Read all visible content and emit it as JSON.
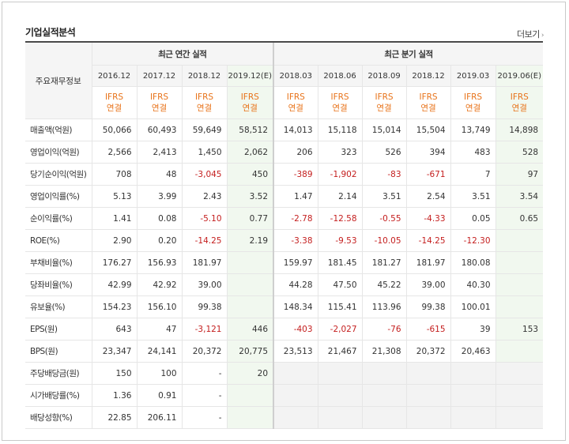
{
  "section_title": "기업실적분석",
  "more_link": "더보기",
  "header": {
    "row_header": "주요재무정보",
    "annual_group": "최근 연간 실적",
    "quarter_group": "최근 분기 실적",
    "annual_periods": [
      "2016.12",
      "2017.12",
      "2018.12",
      "2019.12(E)"
    ],
    "quarter_periods": [
      "2018.03",
      "2018.06",
      "2018.09",
      "2018.12",
      "2019.03",
      "2019.06(E)"
    ],
    "ifrs_line1": "IFRS",
    "ifrs_line2": "연결"
  },
  "rows": [
    {
      "label": "매출액(억원)",
      "values": [
        "50,066",
        "60,493",
        "59,649",
        "58,512",
        "14,013",
        "15,118",
        "15,014",
        "15,504",
        "13,749",
        "14,898"
      ]
    },
    {
      "label": "영업이익(억원)",
      "values": [
        "2,566",
        "2,413",
        "1,450",
        "2,062",
        "206",
        "323",
        "526",
        "394",
        "483",
        "528"
      ]
    },
    {
      "label": "당기순이익(억원)",
      "values": [
        "708",
        "48",
        "-3,045",
        "450",
        "-389",
        "-1,902",
        "-83",
        "-671",
        "7",
        "97"
      ]
    },
    {
      "label": "영업이익률(%)",
      "values": [
        "5.13",
        "3.99",
        "2.43",
        "3.52",
        "1.47",
        "2.14",
        "3.51",
        "2.54",
        "3.51",
        "3.54"
      ]
    },
    {
      "label": "순이익률(%)",
      "values": [
        "1.41",
        "0.08",
        "-5.10",
        "0.77",
        "-2.78",
        "-12.58",
        "-0.55",
        "-4.33",
        "0.05",
        "0.65"
      ]
    },
    {
      "label": "ROE(%)",
      "values": [
        "2.90",
        "0.20",
        "-14.25",
        "2.19",
        "-3.38",
        "-9.53",
        "-10.05",
        "-14.25",
        "-12.30",
        ""
      ]
    },
    {
      "label": "부채비율(%)",
      "values": [
        "176.27",
        "156.93",
        "181.97",
        "",
        "159.97",
        "181.45",
        "181.27",
        "181.97",
        "180.08",
        ""
      ]
    },
    {
      "label": "당좌비율(%)",
      "values": [
        "42.99",
        "42.92",
        "39.00",
        "",
        "44.28",
        "47.50",
        "45.22",
        "39.00",
        "40.30",
        ""
      ]
    },
    {
      "label": "유보율(%)",
      "values": [
        "154.23",
        "156.10",
        "99.38",
        "",
        "148.34",
        "115.41",
        "113.96",
        "99.38",
        "100.01",
        ""
      ]
    },
    {
      "label": "EPS(원)",
      "values": [
        "643",
        "47",
        "-3,121",
        "446",
        "-403",
        "-2,027",
        "-76",
        "-615",
        "39",
        "153"
      ]
    },
    {
      "label": "BPS(원)",
      "values": [
        "23,347",
        "24,141",
        "20,372",
        "20,775",
        "23,513",
        "21,467",
        "21,308",
        "20,372",
        "20,463",
        ""
      ]
    },
    {
      "label": "주당배당금(원)",
      "values": [
        "150",
        "100",
        "-",
        "20",
        "",
        "",
        "",
        "",
        "",
        ""
      ]
    },
    {
      "label": "시가배당률(%)",
      "values": [
        "1.36",
        "0.91",
        "-",
        "",
        "",
        "",
        "",
        "",
        "",
        ""
      ]
    },
    {
      "label": "배당성향(%)",
      "values": [
        "22.85",
        "206.11",
        "-",
        "",
        "",
        "",
        "",
        "",
        "",
        ""
      ]
    }
  ],
  "colors": {
    "negative": "#c41e1e",
    "ifrs": "#e8731a",
    "estimate_bg": "#f1f8ef"
  }
}
